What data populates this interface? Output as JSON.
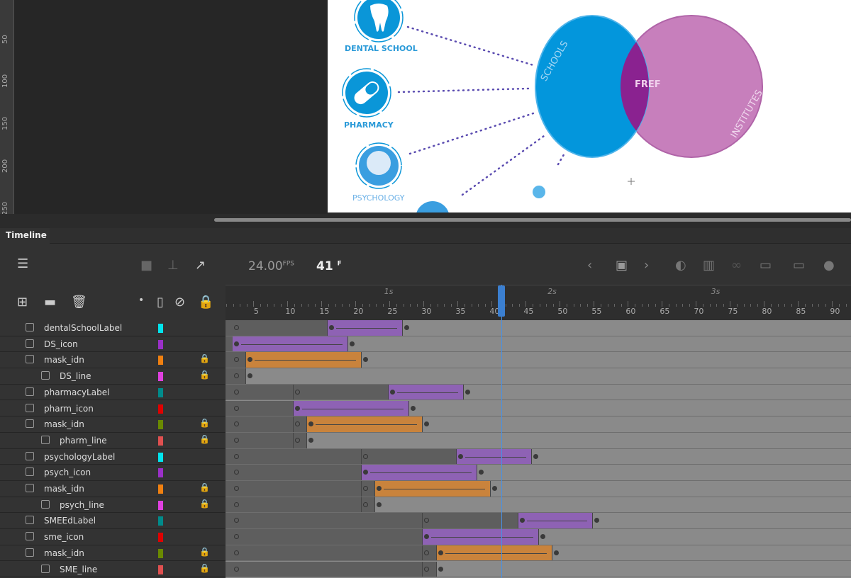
{
  "ruler": {
    "labels": [
      "50",
      "100",
      "150",
      "200",
      "250"
    ]
  },
  "stage": {
    "icons": [
      {
        "label": "DENTAL SCHOOL",
        "icon": "tooth-icon"
      },
      {
        "label": "PHARMACY",
        "icon": "pill-icon"
      },
      {
        "label": "PSYCHOLOGY",
        "icon": "brain-icon"
      }
    ],
    "venn": {
      "left": "SCHOOLS",
      "right": "INSTITUTES",
      "center": "FREF",
      "colors": {
        "left": "#0396dc",
        "right": "#c77fbc",
        "overlap": "#8a2290"
      }
    }
  },
  "timeline": {
    "tab": "Timeline",
    "fps": "24.00",
    "fps_unit": "FPS",
    "frame": "41",
    "frame_unit": "F",
    "current_frame": 41,
    "frame_ticks": [
      "5",
      "10",
      "15",
      "20",
      "25",
      "30",
      "35",
      "40",
      "45",
      "50",
      "55",
      "60",
      "65",
      "70",
      "75",
      "80",
      "85",
      "90"
    ],
    "seconds": [
      "1s",
      "2s",
      "3s"
    ],
    "colors": {
      "static": "#5e5e5e",
      "purple": "#8e62b4",
      "orange": "#c9833c",
      "empty": "#8a8a8a"
    },
    "layers": [
      {
        "name": "dentalSchoolLabel",
        "color": "#00e5ee",
        "indent": false,
        "type": "normal",
        "locked": false,
        "segs": [
          [
            "static",
            2,
            15
          ],
          [
            "purple",
            16,
            26
          ]
        ],
        "key": 27
      },
      {
        "name": "DS_icon",
        "color": "#9b30c8",
        "indent": false,
        "type": "normal",
        "locked": false,
        "segs": [
          [
            "purple",
            2,
            18
          ]
        ],
        "key": 19
      },
      {
        "name": "mask_idn",
        "color": "#f08010",
        "indent": false,
        "type": "mask",
        "locked": true,
        "segs": [
          [
            "static",
            2,
            3
          ],
          [
            "orange",
            4,
            20
          ]
        ],
        "key": 21
      },
      {
        "name": "DS_line",
        "color": "#e040e0",
        "indent": true,
        "type": "masked",
        "locked": true,
        "segs": [
          [
            "static",
            2,
            3
          ]
        ],
        "key": 4
      },
      {
        "name": "pharmacyLabel",
        "color": "#008b8b",
        "indent": false,
        "type": "normal",
        "locked": false,
        "segs": [
          [
            "static",
            2,
            10
          ],
          [
            "static",
            11,
            24
          ],
          [
            "purple",
            25,
            35
          ]
        ],
        "key": 36
      },
      {
        "name": "pharm_icon",
        "color": "#e00000",
        "indent": false,
        "type": "normal",
        "locked": false,
        "segs": [
          [
            "static",
            2,
            10
          ],
          [
            "purple",
            11,
            27
          ]
        ],
        "key": 28
      },
      {
        "name": "mask_idn",
        "color": "#6a8a00",
        "indent": false,
        "type": "mask",
        "locked": true,
        "segs": [
          [
            "static",
            2,
            10
          ],
          [
            "static",
            11,
            12
          ],
          [
            "orange",
            13,
            29
          ]
        ],
        "key": 30
      },
      {
        "name": "pharm_line",
        "color": "#e05050",
        "indent": true,
        "type": "masked",
        "locked": true,
        "segs": [
          [
            "static",
            2,
            10
          ],
          [
            "static",
            11,
            12
          ]
        ],
        "key": 13
      },
      {
        "name": "psychologyLabel",
        "color": "#00e5ee",
        "indent": false,
        "type": "normal",
        "locked": false,
        "segs": [
          [
            "static",
            2,
            20
          ],
          [
            "static",
            21,
            34
          ],
          [
            "purple",
            35,
            45
          ]
        ],
        "key": 46
      },
      {
        "name": "psych_icon",
        "color": "#9b30c8",
        "indent": false,
        "type": "normal",
        "locked": false,
        "segs": [
          [
            "static",
            2,
            20
          ],
          [
            "purple",
            21,
            37
          ]
        ],
        "key": 38
      },
      {
        "name": "mask_idn",
        "color": "#f08010",
        "indent": false,
        "type": "mask",
        "locked": true,
        "segs": [
          [
            "static",
            2,
            20
          ],
          [
            "static",
            21,
            22
          ],
          [
            "orange",
            23,
            39
          ]
        ],
        "key": 40
      },
      {
        "name": "psych_line",
        "color": "#e040e0",
        "indent": true,
        "type": "masked",
        "locked": true,
        "segs": [
          [
            "static",
            2,
            20
          ],
          [
            "static",
            21,
            22
          ]
        ],
        "key": 23
      },
      {
        "name": "SMEEdLabel",
        "color": "#008b8b",
        "indent": false,
        "type": "normal",
        "locked": false,
        "segs": [
          [
            "static",
            2,
            29
          ],
          [
            "static",
            30,
            43
          ],
          [
            "purple",
            44,
            54
          ]
        ],
        "key": 55
      },
      {
        "name": "sme_icon",
        "color": "#e00000",
        "indent": false,
        "type": "normal",
        "locked": false,
        "segs": [
          [
            "static",
            2,
            29
          ],
          [
            "purple",
            30,
            46
          ]
        ],
        "key": 47
      },
      {
        "name": "mask_idn",
        "color": "#6a8a00",
        "indent": false,
        "type": "mask",
        "locked": true,
        "segs": [
          [
            "static",
            2,
            29
          ],
          [
            "static",
            30,
            31
          ],
          [
            "orange",
            32,
            48
          ]
        ],
        "key": 49
      },
      {
        "name": "SME_line",
        "color": "#e05050",
        "indent": true,
        "type": "masked",
        "locked": true,
        "segs": [
          [
            "static",
            2,
            29
          ],
          [
            "static",
            30,
            31
          ]
        ],
        "key": 32
      }
    ]
  }
}
